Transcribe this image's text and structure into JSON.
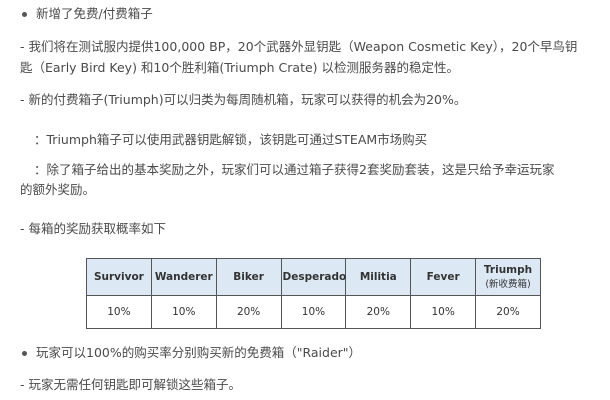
{
  "section1": {
    "heading": "新增了免费/付费箱子",
    "para1_line1": "- 我们将在测试服内提供100,000 BP，20个武器外显钥匙（Weapon Cosmetic Key），20个早鸟钥",
    "para1_line2": "匙（Early Bird Key) 和10个胜利箱(Triumph Crate) 以检测服务器的稳定性。",
    "para2": "- 新的付费箱子(Triumph)可以归类为每周随机箱，玩家可以获得的机会为20%。",
    "para3": "：Triumph箱子可以使用武器钥匙解锁，该钥匙可通过STEAM市场购买",
    "para4_line1": "：除了箱子给出的基本奖励之外，玩家们可以通过箱子获得2套奖励套装，这是只给予幸运玩家",
    "para4_line2": "的额外奖励。",
    "para5": "- 每箱的奖励获取概率如下"
  },
  "table": {
    "headers": [
      "Survivor",
      "Wanderer",
      "Biker",
      "Desperado",
      "Militia",
      "Fever",
      "Triumph"
    ],
    "triumph_sub": "(新收费箱)",
    "values": [
      "10%",
      "10%",
      "20%",
      "10%",
      "20%",
      "10%",
      "20%"
    ],
    "header_bg": "#dce9f5"
  },
  "section2": {
    "heading": "玩家可以100%的购买率分别购买新的免费箱（\"Raider\"）",
    "para1": "- 玩家无需任何钥匙即可解锁这些箱子。"
  }
}
